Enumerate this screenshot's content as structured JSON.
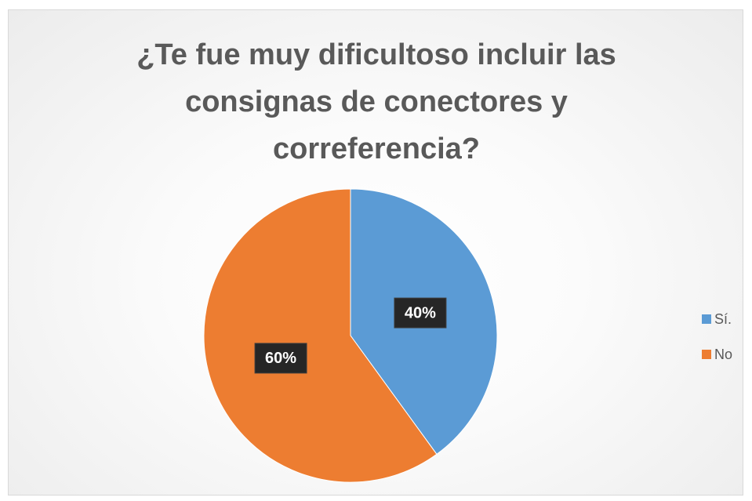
{
  "chart_data": {
    "type": "pie",
    "title": "¿Te fue muy dificultoso incluir las consignas de conectores y correferencia?",
    "categories": [
      "Sí.",
      "No"
    ],
    "values": [
      40,
      60
    ],
    "value_labels": [
      "40%",
      "60%"
    ],
    "colors": [
      "#5b9bd5",
      "#ed7d31"
    ],
    "legend": "right"
  }
}
